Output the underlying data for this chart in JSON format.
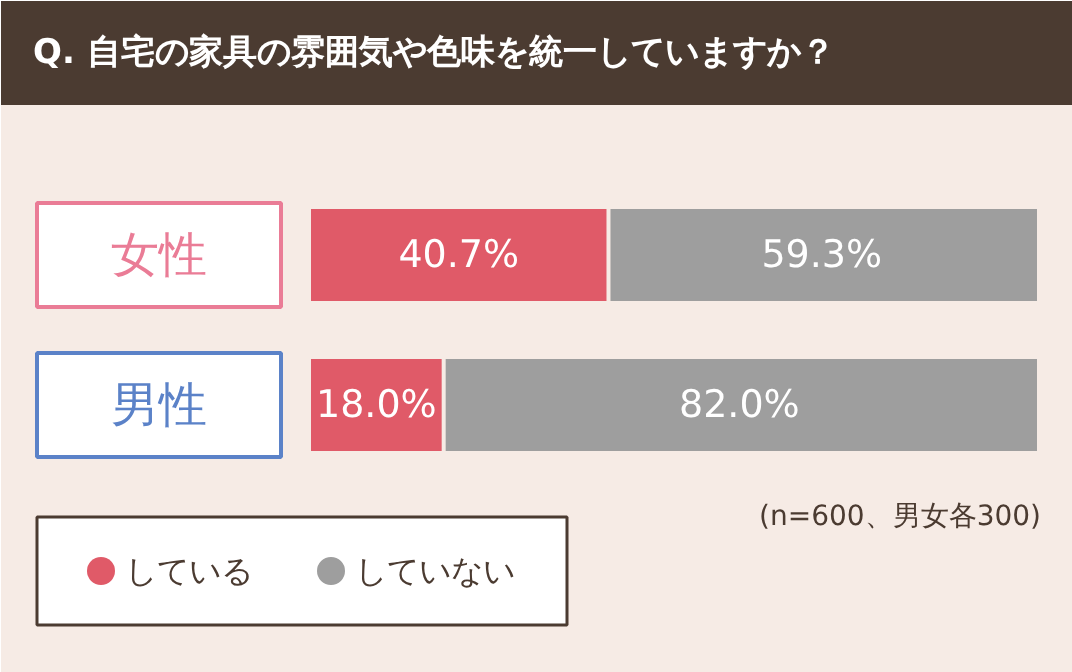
{
  "chart_data": {
    "type": "bar",
    "orientation": "horizontal",
    "stacked": true,
    "title": "Q. 自宅の家具の雰囲気や色味を統一していますか？",
    "categories": [
      "女性",
      "男性"
    ],
    "series": [
      {
        "name": "している",
        "color": "#e05a68",
        "values": [
          40.7,
          18.0
        ],
        "value_labels": [
          "40.7%",
          "18.0%"
        ]
      },
      {
        "name": "していない",
        "color": "#9e9e9e",
        "values": [
          59.3,
          82.0
        ],
        "value_labels": [
          "59.3%",
          "82.0%"
        ]
      }
    ],
    "xlim": [
      0,
      100
    ],
    "grid": false,
    "legend": "bottom left",
    "annotations": [
      "(n=600、男女各300)"
    ]
  }
}
